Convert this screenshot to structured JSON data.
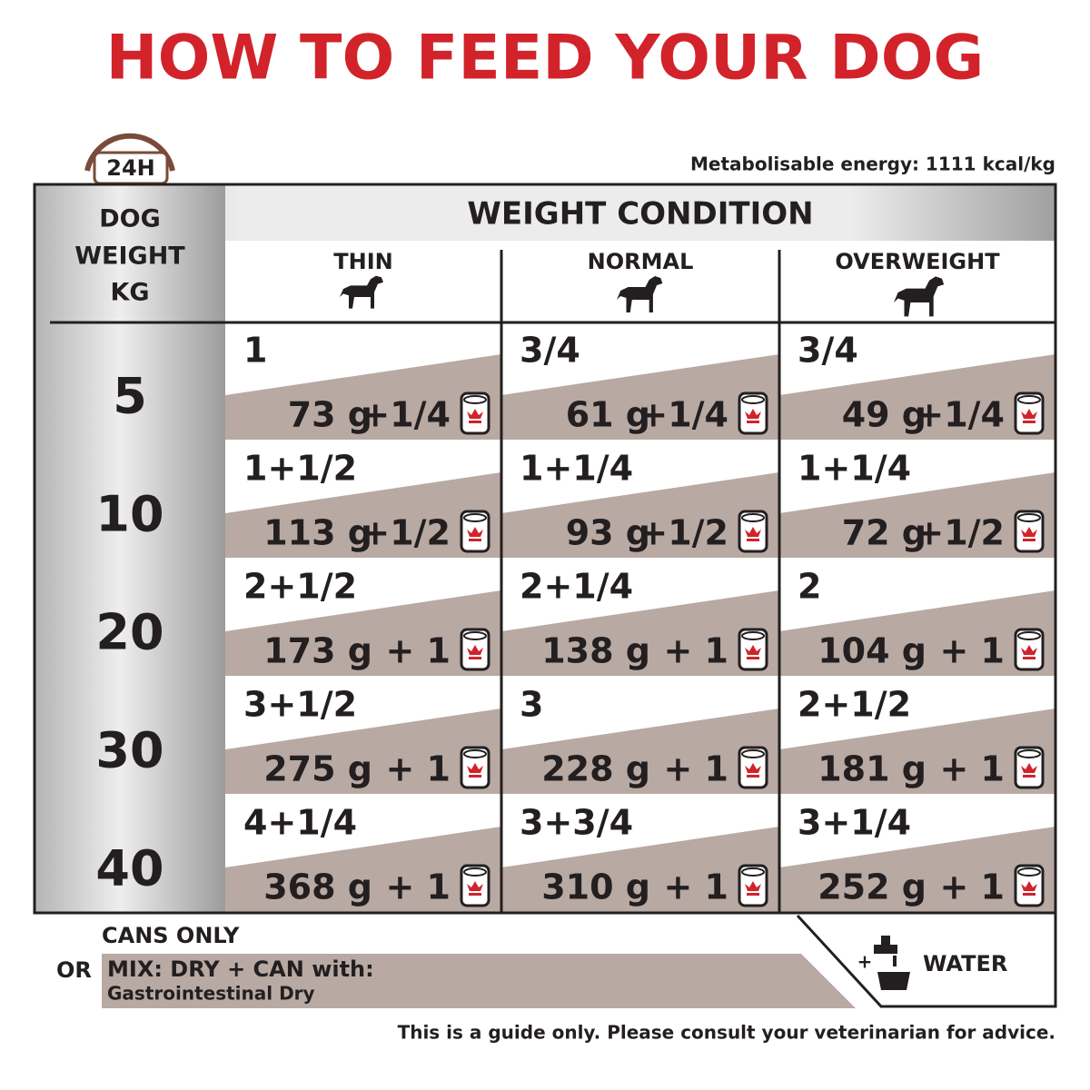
{
  "title": "HOW TO FEED YOUR DOG",
  "badge": "24H",
  "energy_note": "Metabolisable energy: 1111 kcal/kg",
  "table": {
    "corner_header": [
      "DOG",
      "WEIGHT",
      "KG"
    ],
    "group_header": "WEIGHT CONDITION",
    "columns": [
      "THIN",
      "NORMAL",
      "OVERWEIGHT"
    ],
    "rows": [
      {
        "weight": "5",
        "cells": [
          {
            "cans": "1",
            "dry": "73 g",
            "can": "+1/4"
          },
          {
            "cans": "3/4",
            "dry": "61 g",
            "can": "+1/4"
          },
          {
            "cans": "3/4",
            "dry": "49 g",
            "can": "+1/4"
          }
        ]
      },
      {
        "weight": "10",
        "cells": [
          {
            "cans": "1+1/2",
            "dry": "113 g",
            "can": "+1/2"
          },
          {
            "cans": "1+1/4",
            "dry": "93 g",
            "can": "+1/2"
          },
          {
            "cans": "1+1/4",
            "dry": "72 g",
            "can": "+1/2"
          }
        ]
      },
      {
        "weight": "20",
        "cells": [
          {
            "cans": "2+1/2",
            "dry": "173 g",
            "can": "+ 1"
          },
          {
            "cans": "2+1/4",
            "dry": "138 g",
            "can": "+ 1"
          },
          {
            "cans": "2",
            "dry": "104 g",
            "can": "+ 1"
          }
        ]
      },
      {
        "weight": "30",
        "cells": [
          {
            "cans": "3+1/2",
            "dry": "275 g",
            "can": "+ 1"
          },
          {
            "cans": "3",
            "dry": "228 g",
            "can": "+ 1"
          },
          {
            "cans": "2+1/2",
            "dry": "181 g",
            "can": "+ 1"
          }
        ]
      },
      {
        "weight": "40",
        "cells": [
          {
            "cans": "4+1/4",
            "dry": "368 g",
            "can": "+ 1"
          },
          {
            "cans": "3+3/4",
            "dry": "310 g",
            "can": "+ 1"
          },
          {
            "cans": "3+1/4",
            "dry": "252 g",
            "can": "+ 1"
          }
        ]
      }
    ]
  },
  "footer": {
    "cans_only": "CANS ONLY",
    "or": "OR",
    "mix": "MIX: DRY + CAN with:",
    "mix_product": "Gastrointestinal Dry",
    "plus": "+",
    "water": "WATER"
  },
  "disclaimer": "This is a guide only. Please consult your veterinarian for advice."
}
